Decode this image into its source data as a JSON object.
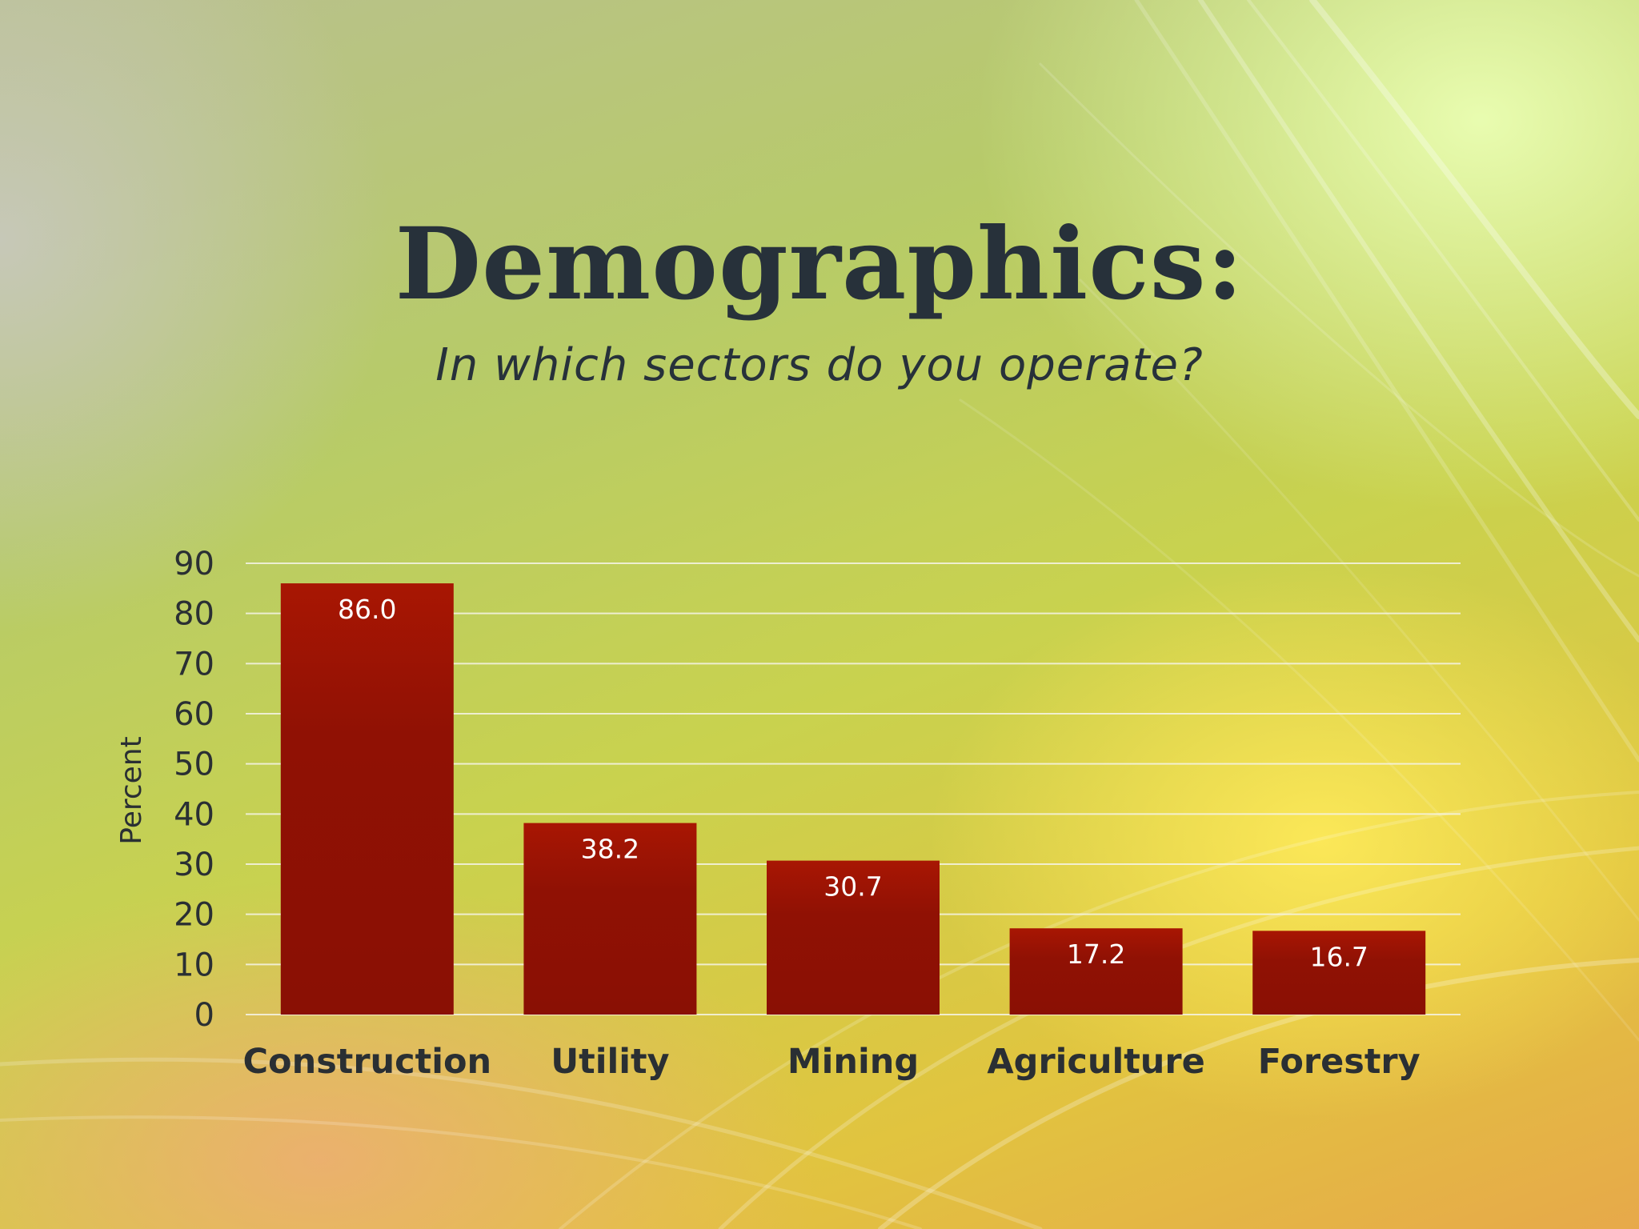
{
  "slide": {
    "title": "Demographics:",
    "subtitle": "In which sectors do you operate?"
  },
  "colors": {
    "bar": "#9a1404",
    "text": "#27313a",
    "grid": "#f5f3e6"
  },
  "chart_data": {
    "type": "bar",
    "categories": [
      "Construction",
      "Utility",
      "Mining",
      "Agriculture",
      "Forestry"
    ],
    "values": [
      86.0,
      38.2,
      30.7,
      17.2,
      16.7
    ],
    "value_labels": [
      "86.0",
      "38.2",
      "30.7",
      "17.2",
      "16.7"
    ],
    "ylabel": "Percent",
    "xlabel": "",
    "ylim": [
      0,
      90
    ],
    "yticks": [
      "0",
      "10",
      "20",
      "30",
      "40",
      "50",
      "60",
      "70",
      "80",
      "90"
    ],
    "grid": true,
    "legend": "none"
  }
}
